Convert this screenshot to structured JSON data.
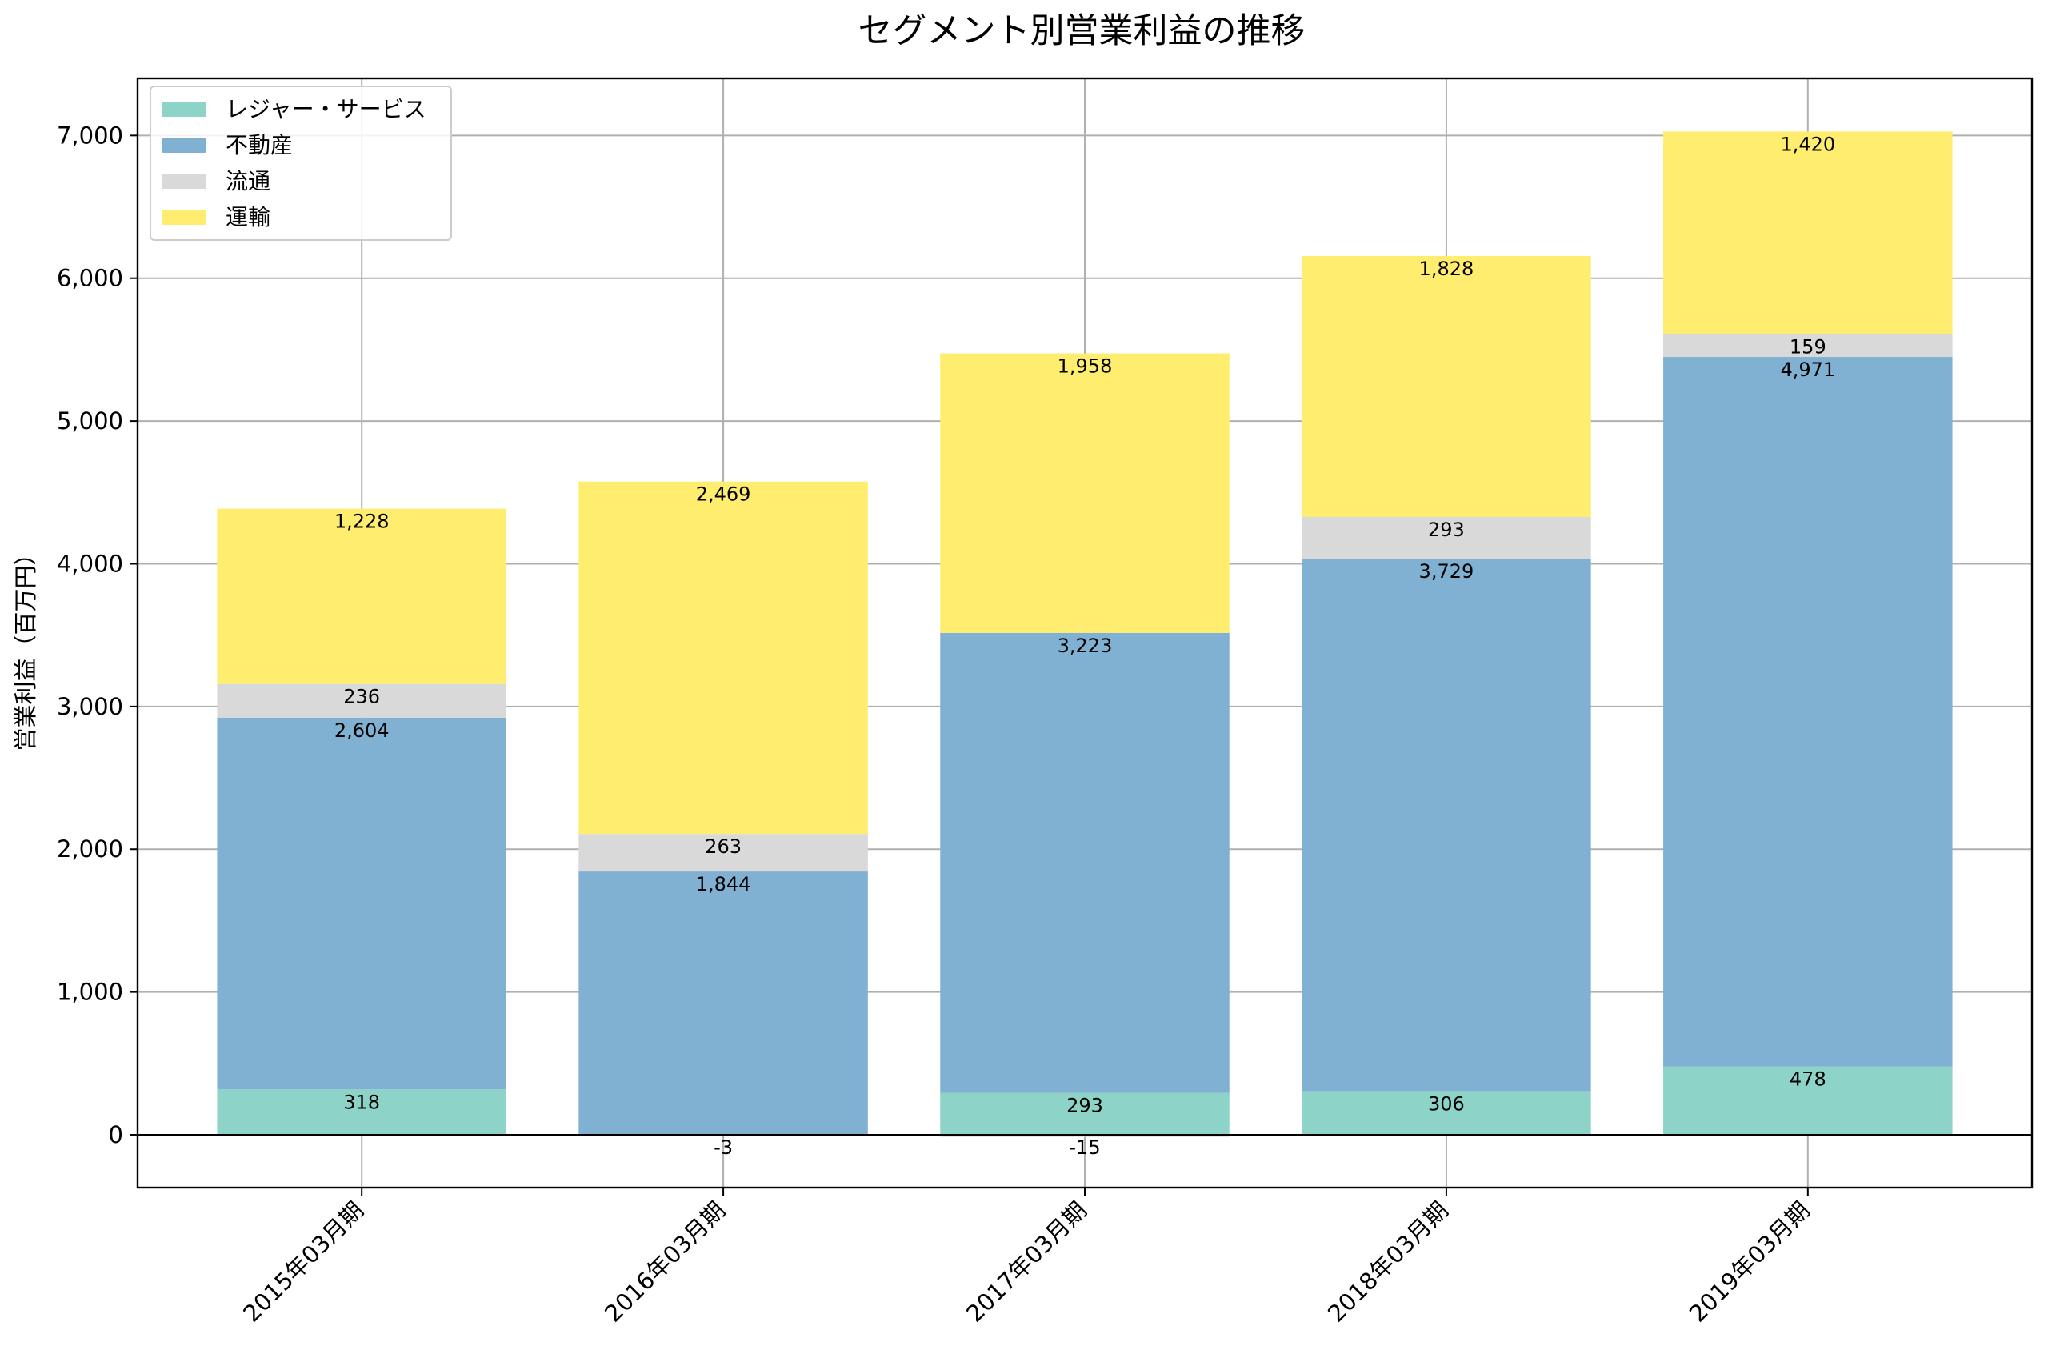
{
  "chart_data": {
    "type": "bar",
    "stacked": true,
    "title": "セグメント別営業利益の推移",
    "ylabel": "営業利益（百万円）",
    "xlabel": "",
    "ylim": [
      -370,
      7400
    ],
    "yticks": [
      0,
      1000,
      2000,
      3000,
      4000,
      5000,
      6000,
      7000
    ],
    "ytick_labels": [
      "0",
      "1,000",
      "2,000",
      "3,000",
      "4,000",
      "5,000",
      "6,000",
      "7,000"
    ],
    "categories": [
      "2015年03月期",
      "2016年03月期",
      "2017年03月期",
      "2018年03月期",
      "2019年03月期"
    ],
    "grid": true,
    "legend_position": "top-left",
    "series": [
      {
        "name": "レジャー・サービス",
        "color": "#8dd3c7",
        "values": [
          318,
          -3,
          293,
          306,
          478
        ]
      },
      {
        "name": "不動産",
        "color": "#80b1d3",
        "values": [
          2604,
          1844,
          3223,
          3729,
          4971
        ]
      },
      {
        "name": "流通",
        "color": "#d9d9d9",
        "values": [
          236,
          263,
          -15,
          293,
          159
        ]
      },
      {
        "name": "運輸",
        "color": "#ffed6f",
        "values": [
          1228,
          2469,
          1958,
          1828,
          1420
        ]
      }
    ],
    "value_labels": [
      [
        "318",
        "-3",
        "293",
        "306",
        "478"
      ],
      [
        "2,604",
        "1,844",
        "3,223",
        "3,729",
        "4,971"
      ],
      [
        "236",
        "263",
        "-15",
        "293",
        "159"
      ],
      [
        "1,228",
        "2,469",
        "1,958",
        "1,828",
        "1,420"
      ]
    ]
  }
}
